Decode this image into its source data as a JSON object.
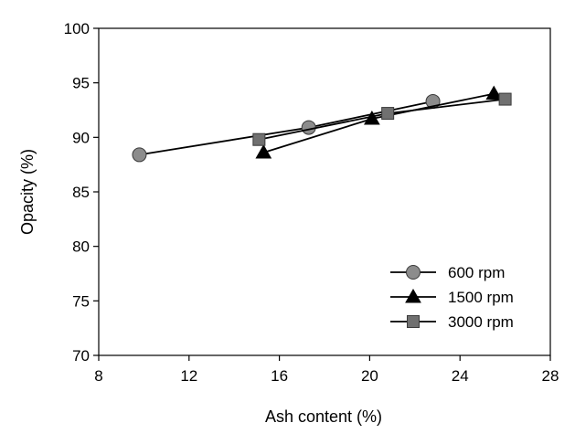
{
  "chart_data": {
    "type": "line",
    "title": "",
    "xlabel": "Ash content (%)",
    "ylabel": "Opacity (%)",
    "xlim": [
      8,
      28
    ],
    "ylim": [
      70,
      100
    ],
    "xticks": [
      8,
      12,
      16,
      20,
      24,
      28
    ],
    "yticks": [
      70,
      75,
      80,
      85,
      90,
      95,
      100
    ],
    "grid": false,
    "legend_position": "bottom-right",
    "series": [
      {
        "name": "600 rpm",
        "marker": "circle",
        "color": "#8c8c8c",
        "points": [
          [
            9.8,
            88.4
          ],
          [
            17.3,
            90.9
          ],
          [
            22.8,
            93.3
          ]
        ]
      },
      {
        "name": "1500 rpm",
        "marker": "triangle",
        "color": "#000000",
        "points": [
          [
            15.3,
            88.6
          ],
          [
            20.1,
            91.7
          ],
          [
            25.5,
            94.0
          ]
        ]
      },
      {
        "name": "3000 rpm",
        "marker": "square",
        "color": "#707070",
        "points": [
          [
            15.1,
            89.8
          ],
          [
            20.8,
            92.2
          ],
          [
            26.0,
            93.5
          ]
        ]
      }
    ]
  }
}
